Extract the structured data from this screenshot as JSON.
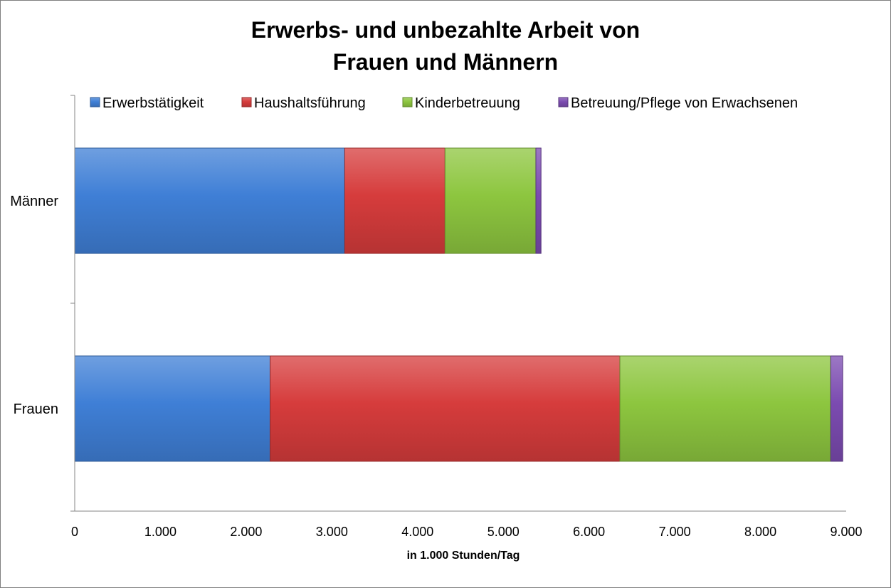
{
  "chart_data": {
    "type": "bar",
    "orientation": "horizontal",
    "stacked": true,
    "title_lines": [
      "Erwerbs- und unbezahlte Arbeit von",
      "Frauen und Männern"
    ],
    "categories": [
      "Männer",
      "Frauen"
    ],
    "series": [
      {
        "name": "Erwerbstätigkeit",
        "color": "#3f7fd6",
        "values": [
          3150,
          2280
        ]
      },
      {
        "name": "Haushaltsführung",
        "color": "#d63c3c",
        "values": [
          1170,
          4080
        ]
      },
      {
        "name": "Kinderbetreuung",
        "color": "#8dc63f",
        "values": [
          1060,
          2460
        ]
      },
      {
        "name": "Betreuung/Pflege von Erwachsenen",
        "color": "#7b4bb0",
        "values": [
          60,
          140
        ]
      }
    ],
    "xlim": [
      0,
      9000
    ],
    "x_ticks": [
      0,
      1000,
      2000,
      3000,
      4000,
      5000,
      6000,
      7000,
      8000,
      9000
    ],
    "x_tick_labels": [
      "0",
      "1.000",
      "2.000",
      "3.000",
      "4.000",
      "5.000",
      "6.000",
      "7.000",
      "8.000",
      "9.000"
    ],
    "xlabel": "in 1.000 Stunden/Tag",
    "ylabel": "",
    "legend_position": "top",
    "grid": false
  }
}
